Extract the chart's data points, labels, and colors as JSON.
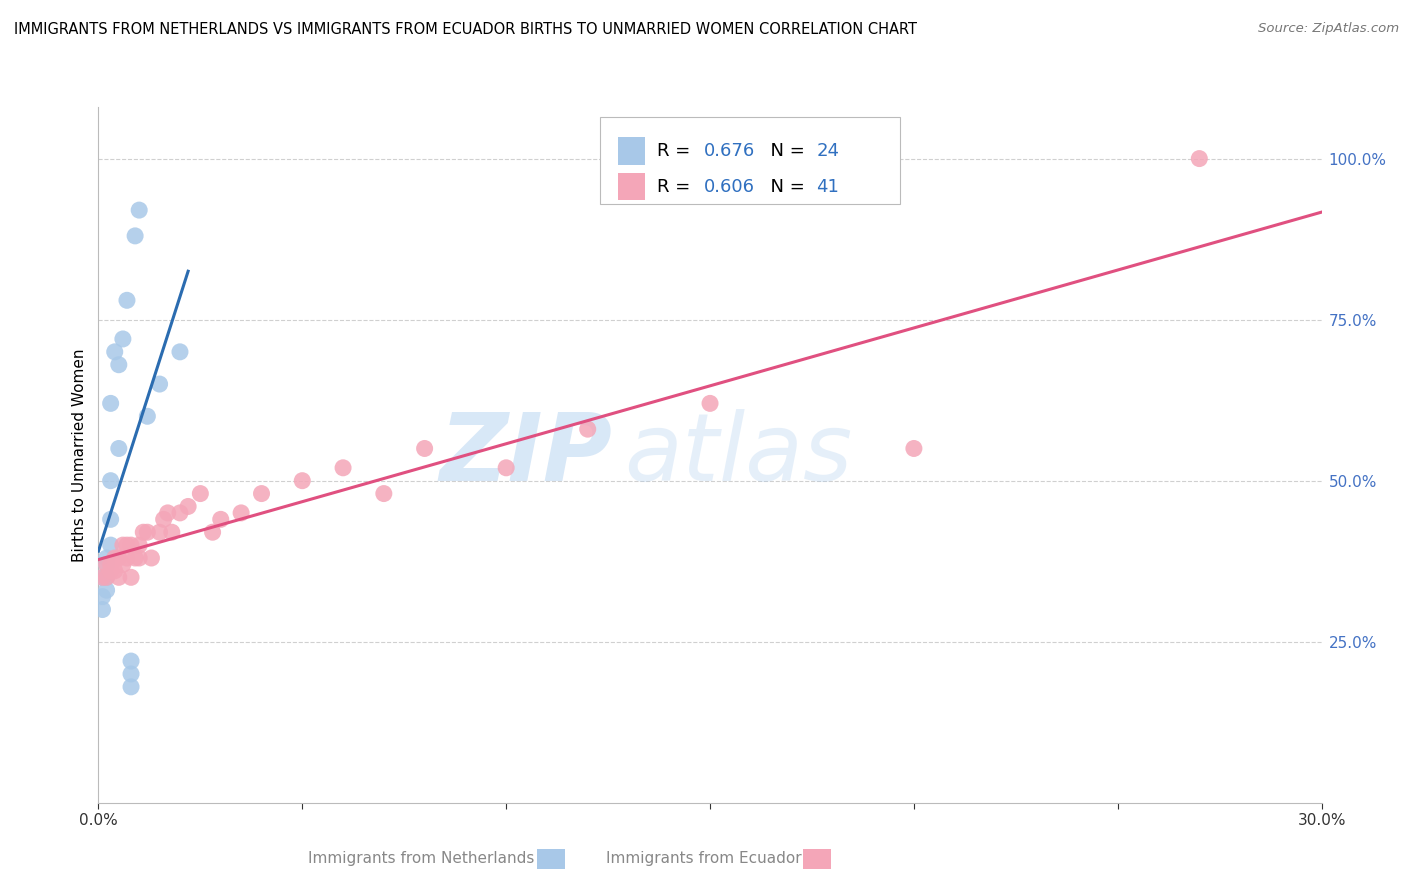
{
  "title": "IMMIGRANTS FROM NETHERLANDS VS IMMIGRANTS FROM ECUADOR BIRTHS TO UNMARRIED WOMEN CORRELATION CHART",
  "source": "Source: ZipAtlas.com",
  "ylabel": "Births to Unmarried Women",
  "xlabel_netherlands": "Immigrants from Netherlands",
  "xlabel_ecuador": "Immigrants from Ecuador",
  "x_min": 0.0,
  "x_max": 0.3,
  "y_min": 0.0,
  "y_max": 1.08,
  "netherlands_R": 0.676,
  "netherlands_N": 24,
  "ecuador_R": 0.606,
  "ecuador_N": 41,
  "blue_color": "#a8c8e8",
  "pink_color": "#f4a6b8",
  "blue_line_color": "#2b6cb0",
  "pink_line_color": "#e05080",
  "watermark_zip": "ZIP",
  "watermark_atlas": "atlas",
  "background_color": "#ffffff",
  "grid_color": "#cccccc",
  "netherlands_x": [
    0.001,
    0.001,
    0.001,
    0.002,
    0.002,
    0.002,
    0.002,
    0.003,
    0.003,
    0.003,
    0.003,
    0.004,
    0.005,
    0.005,
    0.006,
    0.007,
    0.008,
    0.008,
    0.008,
    0.009,
    0.01,
    0.012,
    0.015,
    0.02
  ],
  "netherlands_y": [
    0.3,
    0.32,
    0.35,
    0.33,
    0.35,
    0.37,
    0.38,
    0.4,
    0.44,
    0.5,
    0.62,
    0.7,
    0.55,
    0.68,
    0.72,
    0.78,
    0.18,
    0.2,
    0.22,
    0.88,
    0.92,
    0.6,
    0.65,
    0.7
  ],
  "ecuador_x": [
    0.001,
    0.002,
    0.002,
    0.003,
    0.003,
    0.004,
    0.004,
    0.005,
    0.005,
    0.006,
    0.006,
    0.007,
    0.007,
    0.008,
    0.008,
    0.009,
    0.01,
    0.01,
    0.011,
    0.012,
    0.013,
    0.015,
    0.016,
    0.017,
    0.018,
    0.02,
    0.022,
    0.025,
    0.028,
    0.03,
    0.035,
    0.04,
    0.05,
    0.06,
    0.07,
    0.08,
    0.1,
    0.12,
    0.15,
    0.2,
    0.27
  ],
  "ecuador_y": [
    0.35,
    0.35,
    0.37,
    0.36,
    0.37,
    0.36,
    0.38,
    0.35,
    0.38,
    0.37,
    0.4,
    0.38,
    0.4,
    0.35,
    0.4,
    0.38,
    0.38,
    0.4,
    0.42,
    0.42,
    0.38,
    0.42,
    0.44,
    0.45,
    0.42,
    0.45,
    0.46,
    0.48,
    0.42,
    0.44,
    0.45,
    0.48,
    0.5,
    0.52,
    0.48,
    0.55,
    0.52,
    0.58,
    0.62,
    0.55,
    1.0
  ]
}
